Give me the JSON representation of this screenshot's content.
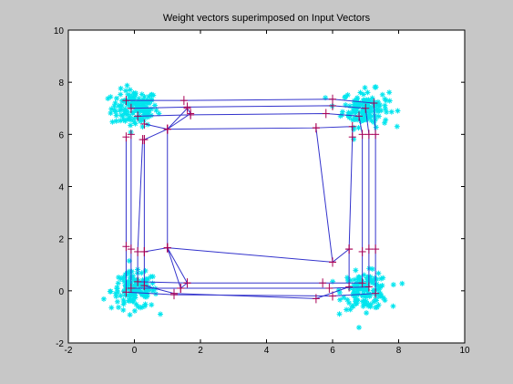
{
  "chart_data": {
    "type": "scatter",
    "title": "Weight vectors superimposed on Input Vectors",
    "xlabel": "",
    "ylabel": "",
    "xlim": [
      -2,
      10
    ],
    "ylim": [
      -2,
      10
    ],
    "grid": false,
    "x_ticks": [
      -2,
      0,
      2,
      4,
      6,
      8,
      10
    ],
    "y_ticks": [
      -2,
      0,
      2,
      4,
      6,
      8,
      10
    ],
    "colors": {
      "input_vectors": "#00e5ee",
      "weight_lines": "#3333cc",
      "weight_markers": "#aa0055",
      "axes_background": "#ffffff",
      "figure_background": "#c7c7c7"
    },
    "input_clusters": [
      {
        "center": [
          0,
          7
        ],
        "spread": 0.35,
        "count": 140
      },
      {
        "center": [
          7,
          7
        ],
        "spread": 0.35,
        "count": 140
      },
      {
        "center": [
          0,
          0
        ],
        "spread": 0.35,
        "count": 140
      },
      {
        "center": [
          7,
          0
        ],
        "spread": 0.35,
        "count": 140
      }
    ],
    "weight_rings": [
      {
        "name": "",
        "points": [
          [
            -0.25,
            7.3
          ],
          [
            1.5,
            7.3
          ],
          [
            6.0,
            7.35
          ],
          [
            7.25,
            7.2
          ],
          [
            7.3,
            6.0
          ],
          [
            7.3,
            1.6
          ],
          [
            7.3,
            -0.1
          ],
          [
            6.0,
            -0.2
          ],
          [
            1.2,
            -0.15
          ],
          [
            -0.25,
            -0.05
          ],
          [
            -0.25,
            1.7
          ],
          [
            -0.25,
            5.9
          ]
        ]
      },
      {
        "name": "",
        "points": [
          [
            -0.1,
            7.0
          ],
          [
            1.6,
            7.05
          ],
          [
            6.0,
            7.1
          ],
          [
            7.0,
            7.0
          ],
          [
            7.1,
            6.0
          ],
          [
            7.1,
            1.6
          ],
          [
            7.1,
            0.15
          ],
          [
            5.9,
            0.1
          ],
          [
            1.4,
            0.1
          ],
          [
            -0.1,
            0.1
          ],
          [
            -0.1,
            1.6
          ],
          [
            -0.1,
            6.0
          ]
        ]
      },
      {
        "name": "",
        "points": [
          [
            0.1,
            6.7
          ],
          [
            1.7,
            6.75
          ],
          [
            5.8,
            6.8
          ],
          [
            6.8,
            6.7
          ],
          [
            6.9,
            6.0
          ],
          [
            6.9,
            1.5
          ],
          [
            6.9,
            0.3
          ],
          [
            5.7,
            0.3
          ],
          [
            1.6,
            0.3
          ],
          [
            0.1,
            0.35
          ],
          [
            0.1,
            1.5
          ],
          [
            0.25,
            5.8
          ]
        ]
      },
      {
        "name": "",
        "points": [
          [
            0.3,
            6.4
          ],
          [
            1.0,
            6.2
          ],
          [
            5.5,
            6.25
          ],
          [
            6.6,
            6.3
          ],
          [
            6.6,
            5.9
          ],
          [
            6.5,
            1.6
          ],
          [
            6.5,
            0.15
          ],
          [
            5.5,
            -0.3
          ],
          [
            1.2,
            -0.1
          ],
          [
            0.3,
            0.2
          ],
          [
            0.3,
            1.5
          ],
          [
            0.3,
            5.8
          ]
        ]
      },
      {
        "name": "",
        "points": [
          [
            0.3,
            5.8
          ],
          [
            1.0,
            6.2
          ],
          [
            1.7,
            6.8
          ],
          [
            1.6,
            7.0
          ],
          [
            1.0,
            6.2
          ],
          [
            1.0,
            1.65
          ],
          [
            1.6,
            0.3
          ],
          [
            1.4,
            0.1
          ],
          [
            1.0,
            1.65
          ],
          [
            0.3,
            1.5
          ]
        ]
      },
      {
        "name": "",
        "points": [
          [
            5.5,
            6.25
          ],
          [
            6.0,
            1.1
          ],
          [
            6.5,
            1.6
          ],
          [
            6.0,
            1.1
          ],
          [
            1.0,
            1.65
          ]
        ]
      }
    ]
  }
}
